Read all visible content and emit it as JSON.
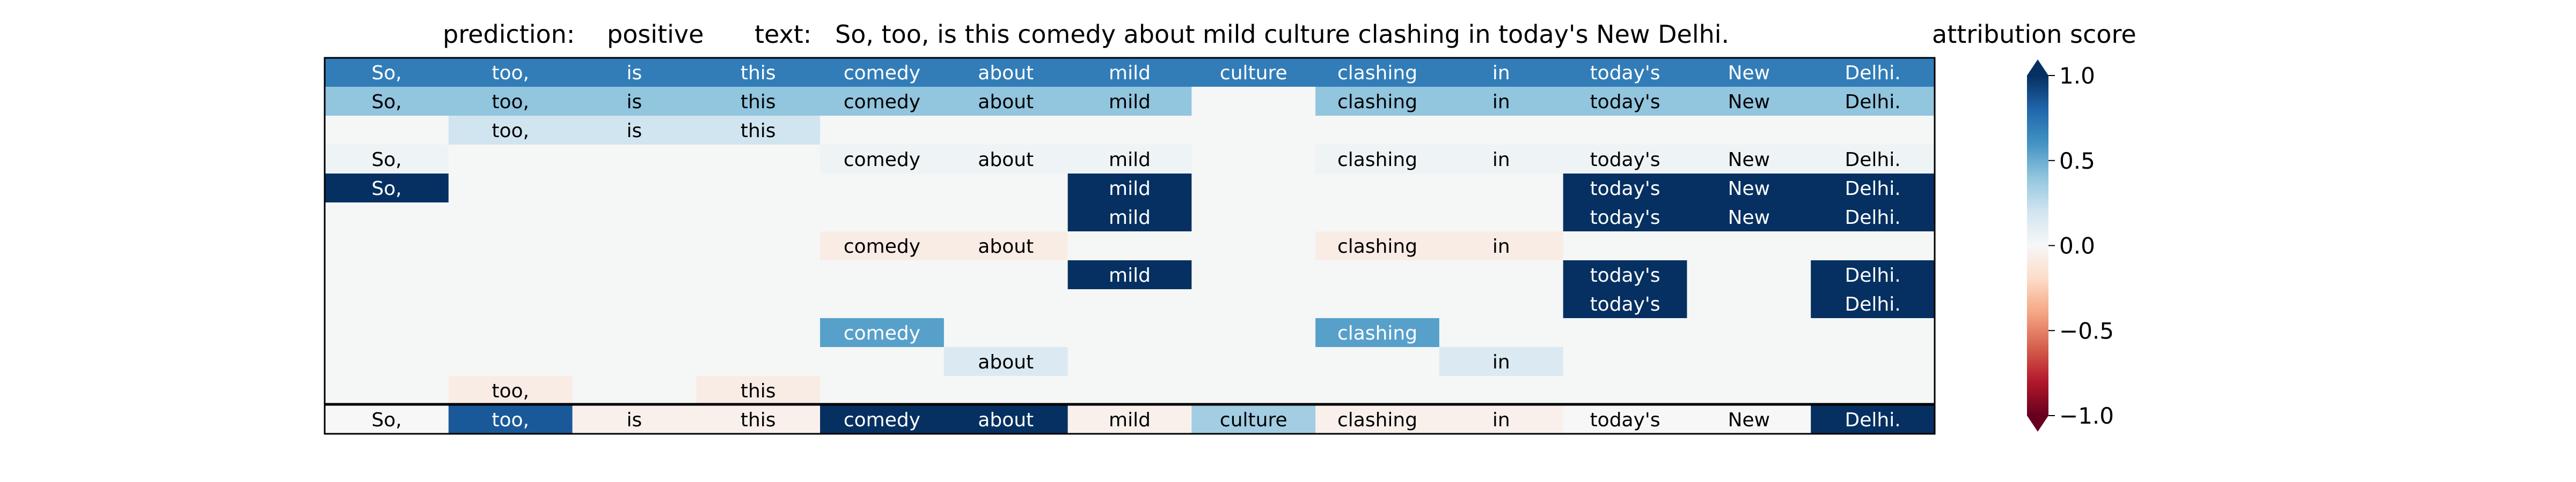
{
  "chart_data": {
    "type": "heatmap",
    "header": {
      "prediction_label": "prediction:",
      "prediction_value": "positive",
      "text_label": "text:",
      "text_value": "So, too, is this comedy about mild culture clashing in today's New Delhi."
    },
    "tokens": [
      "So,",
      "too,",
      "is",
      "this",
      "comedy",
      "about",
      "mild",
      "culture",
      "clashing",
      "in",
      "today's",
      "New",
      "Delhi."
    ],
    "rows": [
      [
        0.7,
        0.7,
        0.7,
        0.7,
        0.7,
        0.7,
        0.7,
        0.7,
        0.7,
        0.7,
        0.7,
        0.7,
        0.7
      ],
      [
        0.4,
        0.4,
        0.4,
        0.4,
        0.4,
        0.4,
        0.4,
        0.0,
        0.4,
        0.4,
        0.4,
        0.4,
        0.4
      ],
      [
        0.0,
        0.2,
        0.2,
        0.2,
        0.0,
        0.0,
        0.0,
        0.0,
        0.0,
        0.0,
        0.0,
        0.0,
        0.0
      ],
      [
        0.05,
        0.0,
        0.0,
        0.0,
        0.05,
        0.05,
        0.05,
        0.0,
        0.05,
        0.05,
        0.05,
        0.05,
        0.05
      ],
      [
        1.0,
        0.0,
        0.0,
        0.0,
        0.0,
        0.0,
        1.0,
        0.0,
        0.0,
        0.0,
        1.0,
        1.0,
        1.0
      ],
      [
        0.0,
        0.0,
        0.0,
        0.0,
        0.0,
        0.0,
        1.0,
        0.0,
        0.0,
        0.0,
        1.0,
        1.0,
        1.0
      ],
      [
        0.0,
        0.0,
        0.0,
        0.0,
        -0.08,
        -0.08,
        0.0,
        0.0,
        -0.08,
        -0.08,
        0.0,
        0.0,
        0.0
      ],
      [
        0.0,
        0.0,
        0.0,
        0.0,
        0.0,
        0.0,
        1.0,
        0.0,
        0.0,
        0.0,
        1.0,
        0.0,
        1.0
      ],
      [
        0.0,
        0.0,
        0.0,
        0.0,
        0.0,
        0.0,
        0.0,
        0.0,
        0.0,
        0.0,
        1.0,
        0.0,
        1.0
      ],
      [
        0.0,
        0.0,
        0.0,
        0.0,
        0.55,
        0.0,
        0.0,
        0.0,
        0.55,
        0.0,
        0.0,
        0.0,
        0.0
      ],
      [
        0.0,
        0.0,
        0.0,
        0.0,
        0.0,
        0.15,
        0.0,
        0.0,
        0.0,
        0.15,
        0.0,
        0.0,
        0.0
      ],
      [
        0.0,
        -0.08,
        0.0,
        -0.08,
        0.0,
        0.0,
        0.0,
        0.0,
        0.0,
        0.0,
        0.0,
        0.0,
        0.0
      ],
      [
        0.0,
        0.85,
        -0.05,
        -0.05,
        1.0,
        1.0,
        -0.05,
        0.35,
        -0.05,
        -0.05,
        0.0,
        0.0,
        1.0
      ]
    ],
    "colorbar": {
      "title": "attribution score",
      "range": [
        -1.0,
        1.0
      ],
      "ticks": [
        1.0,
        0.5,
        0.0,
        -0.5,
        -1.0
      ],
      "tick_labels": [
        "1.0",
        "0.5",
        "0.0",
        "−0.5",
        "−1.0"
      ],
      "colormap": "RdBu"
    },
    "empty_cell_color": "#f5f6f6"
  }
}
